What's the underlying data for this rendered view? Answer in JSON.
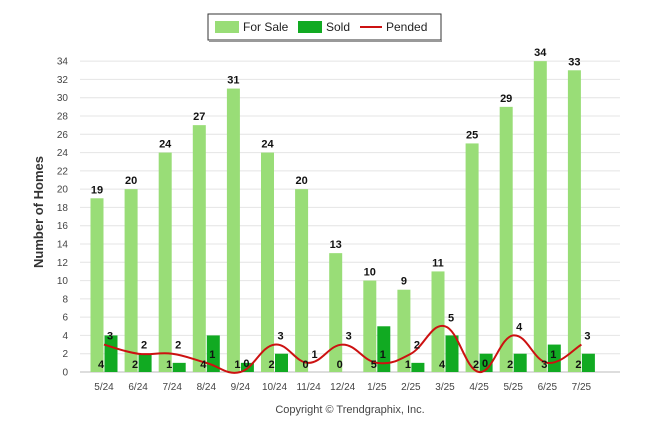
{
  "chart_data": {
    "type": "bar",
    "title": "",
    "xlabel": "",
    "ylabel": "Number of Homes",
    "ylim": [
      0,
      35
    ],
    "yticks": [
      0,
      2,
      4,
      6,
      8,
      10,
      12,
      14,
      16,
      18,
      20,
      22,
      24,
      26,
      28,
      30,
      32,
      34
    ],
    "grid": true,
    "legend_position": "top-center",
    "categories": [
      "5/24",
      "6/24",
      "7/24",
      "8/24",
      "9/24",
      "10/24",
      "11/24",
      "12/24",
      "1/25",
      "2/25",
      "3/25",
      "4/25",
      "5/25",
      "6/25",
      "7/25"
    ],
    "series": [
      {
        "name": "For Sale",
        "type": "bar",
        "color": "#99dd77",
        "values": [
          19,
          20,
          24,
          27,
          31,
          24,
          20,
          13,
          10,
          9,
          11,
          25,
          29,
          34,
          33
        ]
      },
      {
        "name": "Sold",
        "type": "bar",
        "color": "#11aa22",
        "values": [
          4,
          2,
          1,
          4,
          1,
          2,
          0,
          0,
          5,
          1,
          4,
          2,
          2,
          3,
          2
        ]
      },
      {
        "name": "Pended",
        "type": "line",
        "color": "#cc1111",
        "values": [
          3,
          2,
          2,
          1,
          0,
          3,
          1,
          3,
          1,
          2,
          5,
          0,
          4,
          1,
          3
        ]
      }
    ],
    "footer": "Copyright © Trendgraphix, Inc."
  }
}
